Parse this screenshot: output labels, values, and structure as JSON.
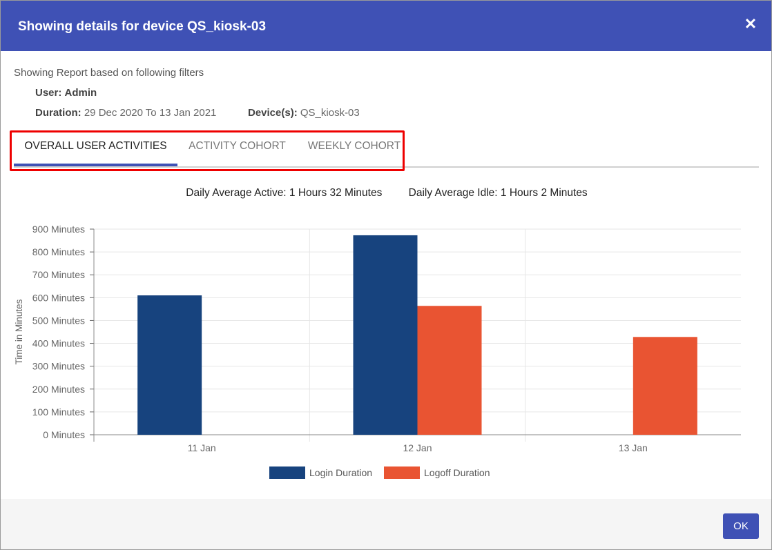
{
  "dialog": {
    "title": "Showing details for device QS_kiosk-03",
    "close_icon": "close-icon",
    "ok_label": "OK"
  },
  "filters": {
    "heading": "Showing Report based on following filters",
    "user_label": "User:",
    "user_value": "Admin",
    "duration_label": "Duration:",
    "duration_value": "29 Dec 2020 To 13 Jan 2021",
    "devices_label": "Device(s):",
    "devices_value": "QS_kiosk-03"
  },
  "tabs": [
    {
      "label": "OVERALL USER ACTIVITIES",
      "active": true
    },
    {
      "label": "ACTIVITY COHORT",
      "active": false
    },
    {
      "label": "WEEKLY COHORT",
      "active": false
    }
  ],
  "summary": {
    "active": "Daily Average Active: 1 Hours 32 Minutes",
    "idle": "Daily Average Idle: 1 Hours 2 Minutes"
  },
  "colors": {
    "header": "#3f51b5",
    "login": "#17437e",
    "logoff": "#e95432",
    "highlight": "#ee0000"
  },
  "chart_data": {
    "type": "bar",
    "categories": [
      "11 Jan",
      "12 Jan",
      "13 Jan"
    ],
    "series": [
      {
        "name": "Login Duration",
        "values": [
          610,
          873,
          0
        ]
      },
      {
        "name": "Logoff Duration",
        "values": [
          0,
          564,
          428
        ]
      }
    ],
    "yticks": [
      "0 Minutes",
      "100 Minutes",
      "200 Minutes",
      "300 Minutes",
      "400 Minutes",
      "500 Minutes",
      "600 Minutes",
      "700 Minutes",
      "800 Minutes",
      "900 Minutes"
    ],
    "ylabel": "Time in Minutes",
    "xlabel": "",
    "ylim": [
      0,
      900
    ],
    "grid": true,
    "legend": "bottom"
  }
}
